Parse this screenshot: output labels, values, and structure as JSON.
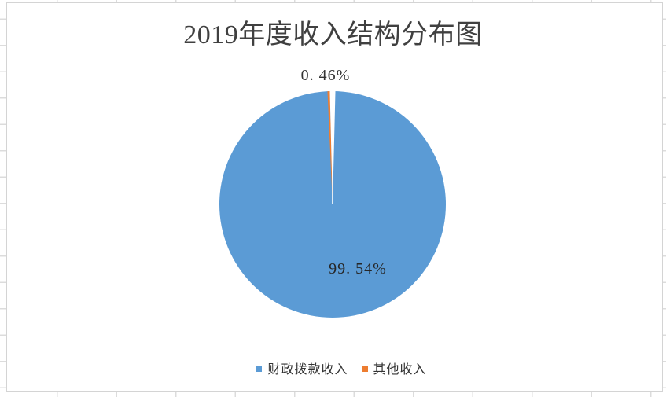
{
  "chart_data": {
    "type": "pie",
    "title": "2019年度收入结构分布图",
    "categories": [
      "财政拨款收入",
      "其他收入"
    ],
    "values": [
      99.54,
      0.46
    ],
    "unit": "%",
    "data_labels": [
      "99. 54%",
      "0. 46%"
    ],
    "colors": [
      "#5B9BD5",
      "#ED7D31"
    ],
    "slice_border_color": "#FFFFFF",
    "start_angle_deg": 0,
    "direction": "clockwise",
    "legend_position": "bottom",
    "background": "#FFFFFF"
  },
  "ui_colors": {
    "chart_frame_border": "#D4D4D4",
    "gridline_stub": "#DCDCDC",
    "title_text": "#404040",
    "label_text": "#333333"
  }
}
